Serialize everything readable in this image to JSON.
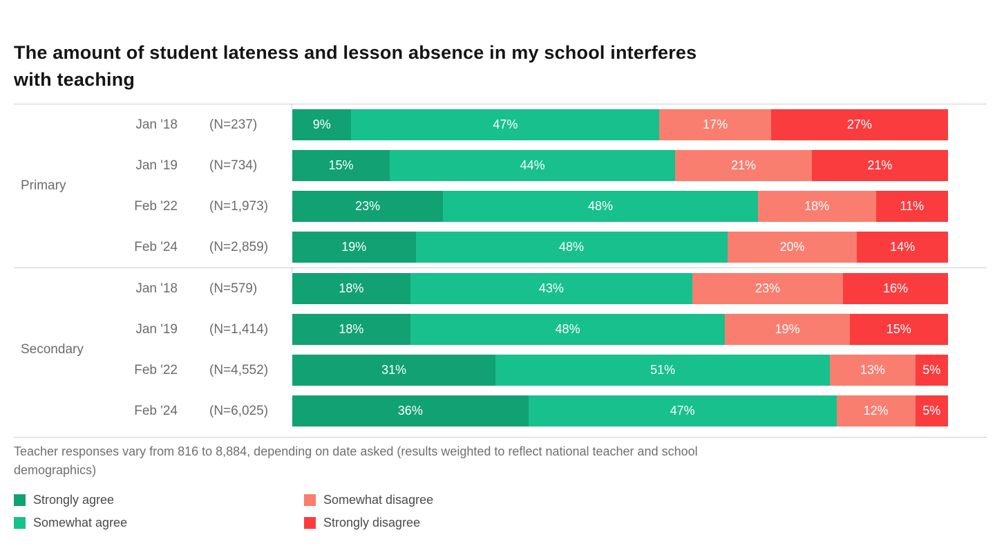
{
  "header": {
    "title_lines": [
      "The amount of student lateness and lesson absence in my school interferes",
      "with teaching"
    ]
  },
  "footer": {
    "lines": [
      "Teacher responses vary from 816 to 8,884, depending on date asked (results weighted to reflect national teacher and school",
      "demographics)"
    ]
  },
  "chart_data": {
    "type": "bar",
    "stacked": true,
    "orientation": "horizontal",
    "unit": "%",
    "title": "The amount of student lateness and lesson absence in my school interferes with teaching",
    "note": "Teacher responses vary from 816 to 8,884, depending on date asked (results weighted to reflect national teacher and school demographics)",
    "series_names": [
      "Strongly agree",
      "Somewhat agree",
      "Somewhat disagree",
      "Strongly disagree"
    ],
    "colors": [
      "#12a173",
      "#18c08d",
      "#fa7e70",
      "#fa3c3f"
    ],
    "legend_position": "bottom-left",
    "xlim": [
      0,
      100
    ],
    "grid": false,
    "groups": [
      {
        "label": "Primary",
        "rows": [
          {
            "date": "Jan '18",
            "n": "(N=237)",
            "values": [
              9,
              47,
              17,
              27
            ]
          },
          {
            "date": "Jan '19",
            "n": "(N=734)",
            "values": [
              15,
              44,
              21,
              21
            ]
          },
          {
            "date": "Feb '22",
            "n": "(N=1,973)",
            "values": [
              23,
              48,
              18,
              11
            ]
          },
          {
            "date": "Feb '24",
            "n": "(N=2,859)",
            "values": [
              19,
              48,
              20,
              14
            ]
          }
        ]
      },
      {
        "label": "Secondary",
        "rows": [
          {
            "date": "Jan '18",
            "n": "(N=579)",
            "values": [
              18,
              43,
              23,
              16
            ]
          },
          {
            "date": "Jan '19",
            "n": "(N=1,414)",
            "values": [
              18,
              48,
              19,
              15
            ]
          },
          {
            "date": "Feb '22",
            "n": "(N=4,552)",
            "values": [
              31,
              51,
              13,
              5
            ]
          },
          {
            "date": "Feb '24",
            "n": "(N=6,025)",
            "values": [
              36,
              47,
              12,
              5
            ]
          }
        ]
      }
    ]
  }
}
